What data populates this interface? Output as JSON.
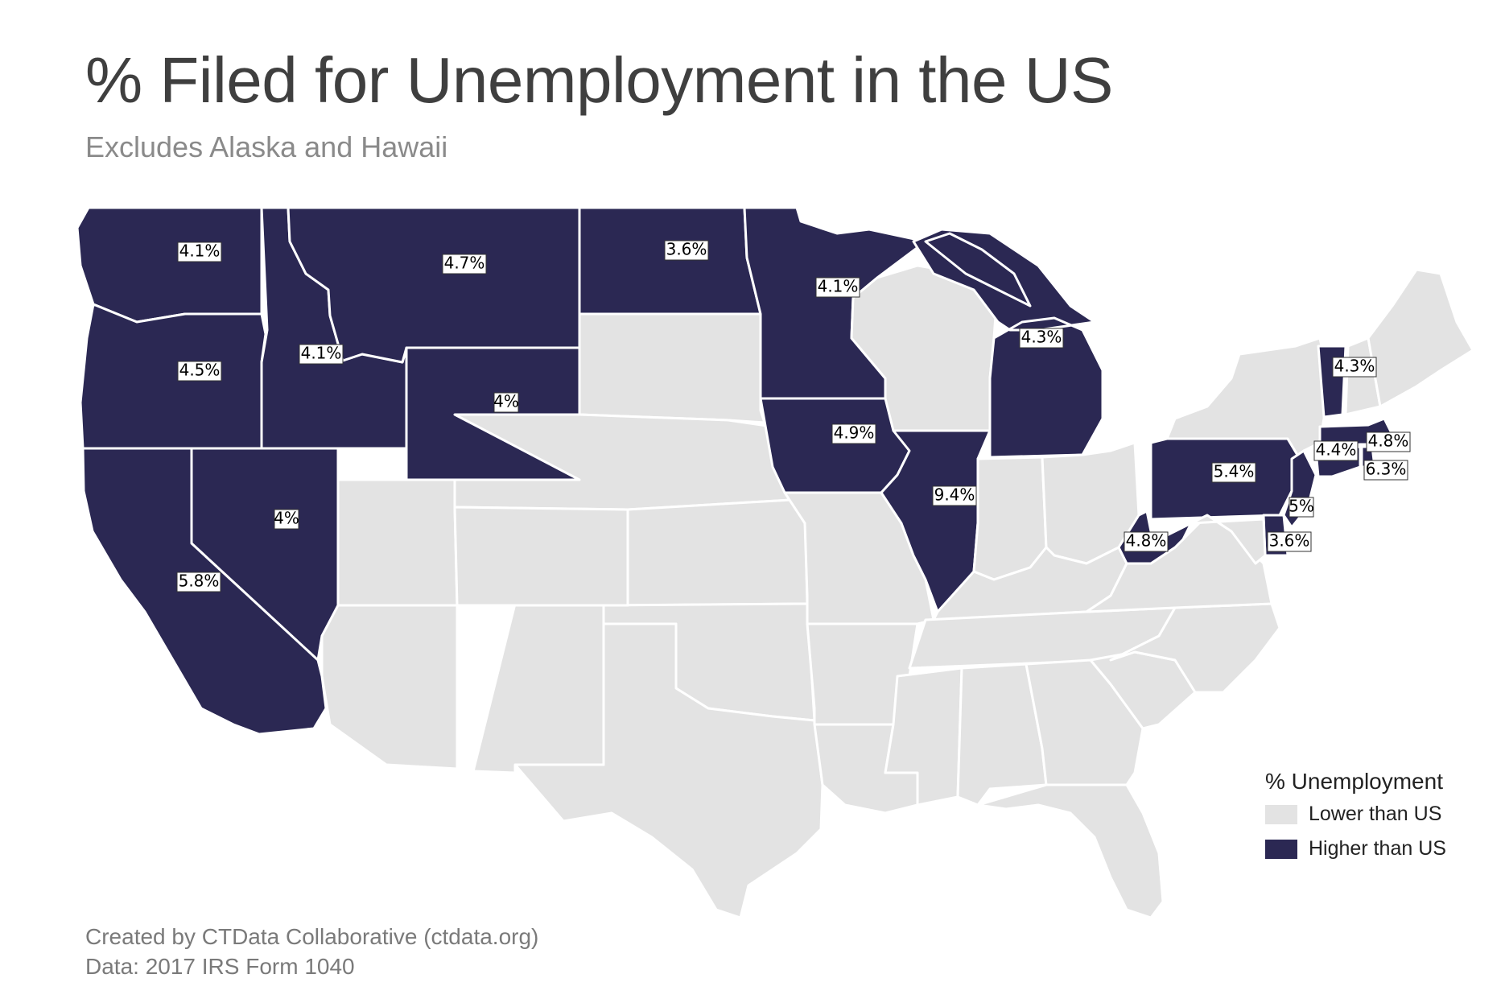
{
  "title": "% Filed for Unemployment in the US",
  "subtitle": "Excludes Alaska and Hawaii",
  "colors": {
    "lower": "#e3e3e3",
    "higher": "#2b2853",
    "border": "#ffffff"
  },
  "legend": {
    "title": "% Unemployment",
    "items": [
      {
        "label": "Lower than US",
        "color": "#e3e3e3"
      },
      {
        "label": "Higher than US",
        "color": "#2b2853"
      }
    ]
  },
  "states_higher": [
    {
      "state": "WA",
      "label": "4.1%"
    },
    {
      "state": "OR",
      "label": "4.5%"
    },
    {
      "state": "ID",
      "label": "4.1%"
    },
    {
      "state": "MT",
      "label": "4.7%"
    },
    {
      "state": "WY",
      "label": "4%"
    },
    {
      "state": "NV",
      "label": "4%"
    },
    {
      "state": "CA",
      "label": "5.8%"
    },
    {
      "state": "ND",
      "label": "3.6%"
    },
    {
      "state": "MN",
      "label": "4.1%"
    },
    {
      "state": "MI",
      "label": "4.3%"
    },
    {
      "state": "IA",
      "label": "4.9%"
    },
    {
      "state": "IL",
      "label": "9.4%"
    },
    {
      "state": "PA",
      "label": "5.4%"
    },
    {
      "state": "WV",
      "label": "4.8%"
    },
    {
      "state": "VT",
      "label": "4.3%"
    },
    {
      "state": "MA",
      "label": "4.8%"
    },
    {
      "state": "CT",
      "label": "4.4%"
    },
    {
      "state": "RI",
      "label": "6.3%"
    },
    {
      "state": "NJ",
      "label": "5%"
    },
    {
      "state": "DE",
      "label": "3.6%"
    }
  ],
  "credits": {
    "line1": "Created by CTData Collaborative (ctdata.org)",
    "line2": "Data: 2017 IRS Form 1040"
  }
}
